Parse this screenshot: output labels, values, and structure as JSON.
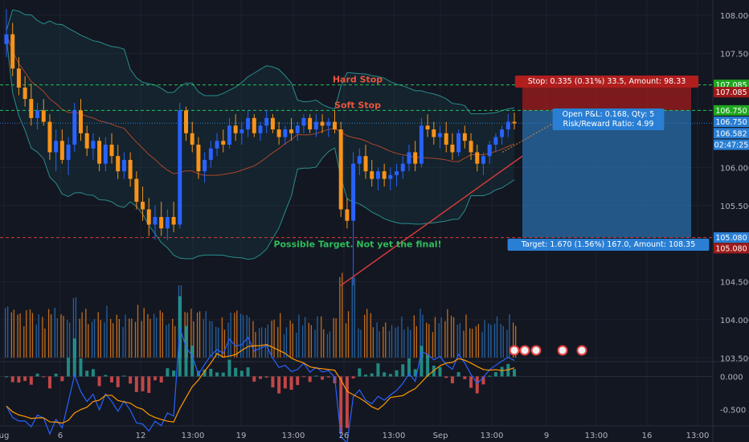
{
  "chart_data": {
    "type": "candlestick",
    "instrument_note": "",
    "price_axis": {
      "range": [
        103.45,
        108.2
      ],
      "ticks": [
        {
          "value": 108.0,
          "label": "108.000"
        },
        {
          "value": 107.5,
          "label": "107.500"
        },
        {
          "value": 106.0,
          "label": "106.000"
        },
        {
          "value": 105.5,
          "label": "105.500"
        },
        {
          "value": 104.5,
          "label": "104.500"
        },
        {
          "value": 104.0,
          "label": "104.000"
        },
        {
          "value": 103.5,
          "label": "103.500"
        }
      ]
    },
    "price_badges": [
      {
        "value": 107.085,
        "label": "107.085",
        "color": "#1fa61f",
        "text_color": "#ffffff"
      },
      {
        "value": 106.99,
        "label": "107.085",
        "color": "#9e1b1b",
        "text_color": "#ffffff"
      },
      {
        "value": 106.75,
        "label": "106.750",
        "color": "#1fa61f",
        "text_color": "#ffffff"
      },
      {
        "value": 106.6,
        "label": "106.750",
        "color": "#2a7fd4",
        "text_color": "#ffffff"
      },
      {
        "value": 106.45,
        "label": "106.582",
        "color": "#2a7fd4",
        "text_color": "#ffffff"
      },
      {
        "value": 106.3,
        "label": "02:47:25",
        "color": "#2a7fd4",
        "text_color": "#ffffff"
      },
      {
        "value": 105.08,
        "label": "105.080",
        "color": "#2a7fd4",
        "text_color": "#ffffff"
      },
      {
        "value": 104.94,
        "label": "105.080",
        "color": "#9e1b1b",
        "text_color": "#ffffff"
      }
    ],
    "x_axis": {
      "ticks": [
        "ug",
        "6",
        "12",
        "13:00",
        "19",
        "13:00",
        "26",
        "13:00",
        "Sep",
        "13:00",
        "9",
        "13:00",
        "16",
        "13:00"
      ]
    },
    "horizontal_levels": [
      {
        "value": 107.085,
        "color": "#22c55e",
        "style": "dashed"
      },
      {
        "value": 106.75,
        "color": "#22c55e",
        "style": "dashed"
      },
      {
        "value": 106.582,
        "color": "#2a7fd4",
        "style": "dotted"
      },
      {
        "value": 105.08,
        "color": "#d63a3a",
        "style": "dashed"
      }
    ],
    "annotations": {
      "hard_stop": "Hard Stop",
      "soft_stop": "Soft Stop",
      "target_note": "Possible Target. Not yet the final!"
    },
    "position_tool": {
      "entry": 106.75,
      "stop": 107.085,
      "target": 105.08,
      "stop_label": "Stop: 0.335 (0.31%) 33.5, Amount: 98.33",
      "pnl_line1": "Open P&L: 0.168, Qty: 5",
      "pnl_line2": "Risk/Reward Ratio: 4.99",
      "target_label": "Target: 1.670 (1.56%) 167.0, Amount: 108.35"
    },
    "trendline": {
      "from": 104.45,
      "to": 106.15,
      "color": "#d03a3a"
    },
    "volume_note": "",
    "macd_axis": {
      "range": [
        -0.75,
        0.2
      ],
      "ticks": [
        {
          "value": 0.0,
          "label": "0.000"
        },
        {
          "value": -0.5,
          "label": "-0.500"
        }
      ]
    },
    "candles": [
      [
        107.62,
        108.08,
        107.45,
        107.75
      ],
      [
        107.75,
        107.9,
        107.2,
        107.3
      ],
      [
        107.3,
        107.45,
        106.95,
        107.05
      ],
      [
        107.05,
        107.2,
        106.8,
        106.9
      ],
      [
        106.9,
        107.1,
        106.55,
        106.65
      ],
      [
        106.65,
        106.85,
        106.5,
        106.75
      ],
      [
        106.75,
        106.9,
        106.55,
        106.6
      ],
      [
        106.6,
        106.7,
        106.1,
        106.2
      ],
      [
        106.2,
        106.5,
        105.95,
        106.35
      ],
      [
        106.35,
        106.5,
        106.05,
        106.1
      ],
      [
        106.1,
        106.4,
        105.9,
        106.3
      ],
      [
        106.3,
        106.85,
        106.2,
        106.75
      ],
      [
        106.75,
        106.9,
        106.35,
        106.45
      ],
      [
        106.45,
        106.55,
        106.15,
        106.25
      ],
      [
        106.25,
        106.45,
        106.1,
        106.35
      ],
      [
        106.35,
        106.4,
        105.95,
        106.05
      ],
      [
        106.05,
        106.4,
        105.95,
        106.3
      ],
      [
        106.3,
        106.45,
        106.05,
        106.15
      ],
      [
        106.15,
        106.3,
        105.85,
        105.95
      ],
      [
        105.95,
        106.2,
        105.85,
        106.1
      ],
      [
        106.1,
        106.2,
        105.75,
        105.85
      ],
      [
        105.85,
        105.95,
        105.45,
        105.55
      ],
      [
        105.55,
        105.75,
        105.3,
        105.45
      ],
      [
        105.45,
        105.6,
        105.1,
        105.25
      ],
      [
        105.25,
        105.5,
        105.05,
        105.35
      ],
      [
        105.35,
        105.55,
        105.1,
        105.2
      ],
      [
        105.2,
        105.45,
        105.05,
        105.35
      ],
      [
        105.35,
        105.55,
        105.15,
        105.25
      ],
      [
        105.25,
        106.85,
        105.2,
        106.75
      ],
      [
        106.75,
        106.8,
        106.35,
        106.45
      ],
      [
        106.45,
        106.6,
        106.2,
        106.3
      ],
      [
        106.3,
        106.4,
        105.85,
        105.95
      ],
      [
        105.95,
        106.2,
        105.8,
        106.1
      ],
      [
        106.1,
        106.35,
        106.0,
        106.25
      ],
      [
        106.25,
        106.45,
        106.15,
        106.35
      ],
      [
        106.35,
        106.5,
        106.2,
        106.3
      ],
      [
        106.3,
        106.65,
        106.25,
        106.55
      ],
      [
        106.55,
        106.7,
        106.35,
        106.45
      ],
      [
        106.45,
        106.6,
        106.3,
        106.5
      ],
      [
        106.5,
        106.75,
        106.4,
        106.65
      ],
      [
        106.65,
        106.7,
        106.4,
        106.45
      ],
      [
        106.45,
        106.6,
        106.35,
        106.55
      ],
      [
        106.55,
        106.75,
        106.45,
        106.65
      ],
      [
        106.65,
        106.7,
        106.45,
        106.5
      ],
      [
        106.5,
        106.6,
        106.3,
        106.4
      ],
      [
        106.4,
        106.55,
        106.3,
        106.5
      ],
      [
        106.5,
        106.65,
        106.35,
        106.45
      ],
      [
        106.45,
        106.6,
        106.35,
        106.55
      ],
      [
        106.55,
        106.7,
        106.45,
        106.65
      ],
      [
        106.65,
        106.7,
        106.45,
        106.5
      ],
      [
        106.5,
        106.7,
        106.4,
        106.6
      ],
      [
        106.6,
        106.7,
        106.45,
        106.55
      ],
      [
        106.55,
        106.65,
        106.4,
        106.6
      ],
      [
        106.6,
        106.75,
        106.45,
        106.5
      ],
      [
        106.5,
        106.6,
        105.35,
        105.45
      ],
      [
        105.45,
        105.6,
        105.2,
        105.3
      ],
      [
        105.3,
        106.2,
        104.45,
        106.05
      ],
      [
        106.05,
        106.25,
        105.9,
        106.15
      ],
      [
        106.15,
        106.3,
        105.85,
        105.95
      ],
      [
        105.95,
        106.1,
        105.75,
        105.85
      ],
      [
        105.85,
        106.0,
        105.7,
        105.95
      ],
      [
        105.95,
        106.05,
        105.75,
        105.85
      ],
      [
        105.85,
        106.0,
        105.7,
        105.9
      ],
      [
        105.9,
        106.05,
        105.75,
        105.95
      ],
      [
        105.95,
        106.15,
        105.85,
        106.05
      ],
      [
        106.05,
        106.3,
        105.95,
        106.2
      ],
      [
        106.2,
        106.35,
        105.95,
        106.05
      ],
      [
        106.05,
        106.65,
        106.0,
        106.55
      ],
      [
        106.55,
        106.7,
        106.4,
        106.5
      ],
      [
        106.5,
        106.6,
        106.3,
        106.4
      ],
      [
        106.4,
        106.55,
        106.25,
        106.45
      ],
      [
        106.45,
        106.6,
        106.2,
        106.3
      ],
      [
        106.3,
        106.45,
        106.1,
        106.2
      ],
      [
        106.2,
        106.5,
        106.15,
        106.45
      ],
      [
        106.45,
        106.55,
        106.25,
        106.35
      ],
      [
        106.35,
        106.45,
        106.1,
        106.2
      ],
      [
        106.2,
        106.3,
        105.95,
        106.05
      ],
      [
        106.05,
        106.2,
        105.9,
        106.15
      ],
      [
        106.15,
        106.35,
        106.05,
        106.3
      ],
      [
        106.3,
        106.45,
        106.2,
        106.4
      ],
      [
        106.4,
        106.55,
        106.3,
        106.5
      ],
      [
        106.5,
        106.7,
        106.4,
        106.6
      ],
      [
        106.6,
        106.72,
        106.5,
        106.58
      ]
    ]
  }
}
